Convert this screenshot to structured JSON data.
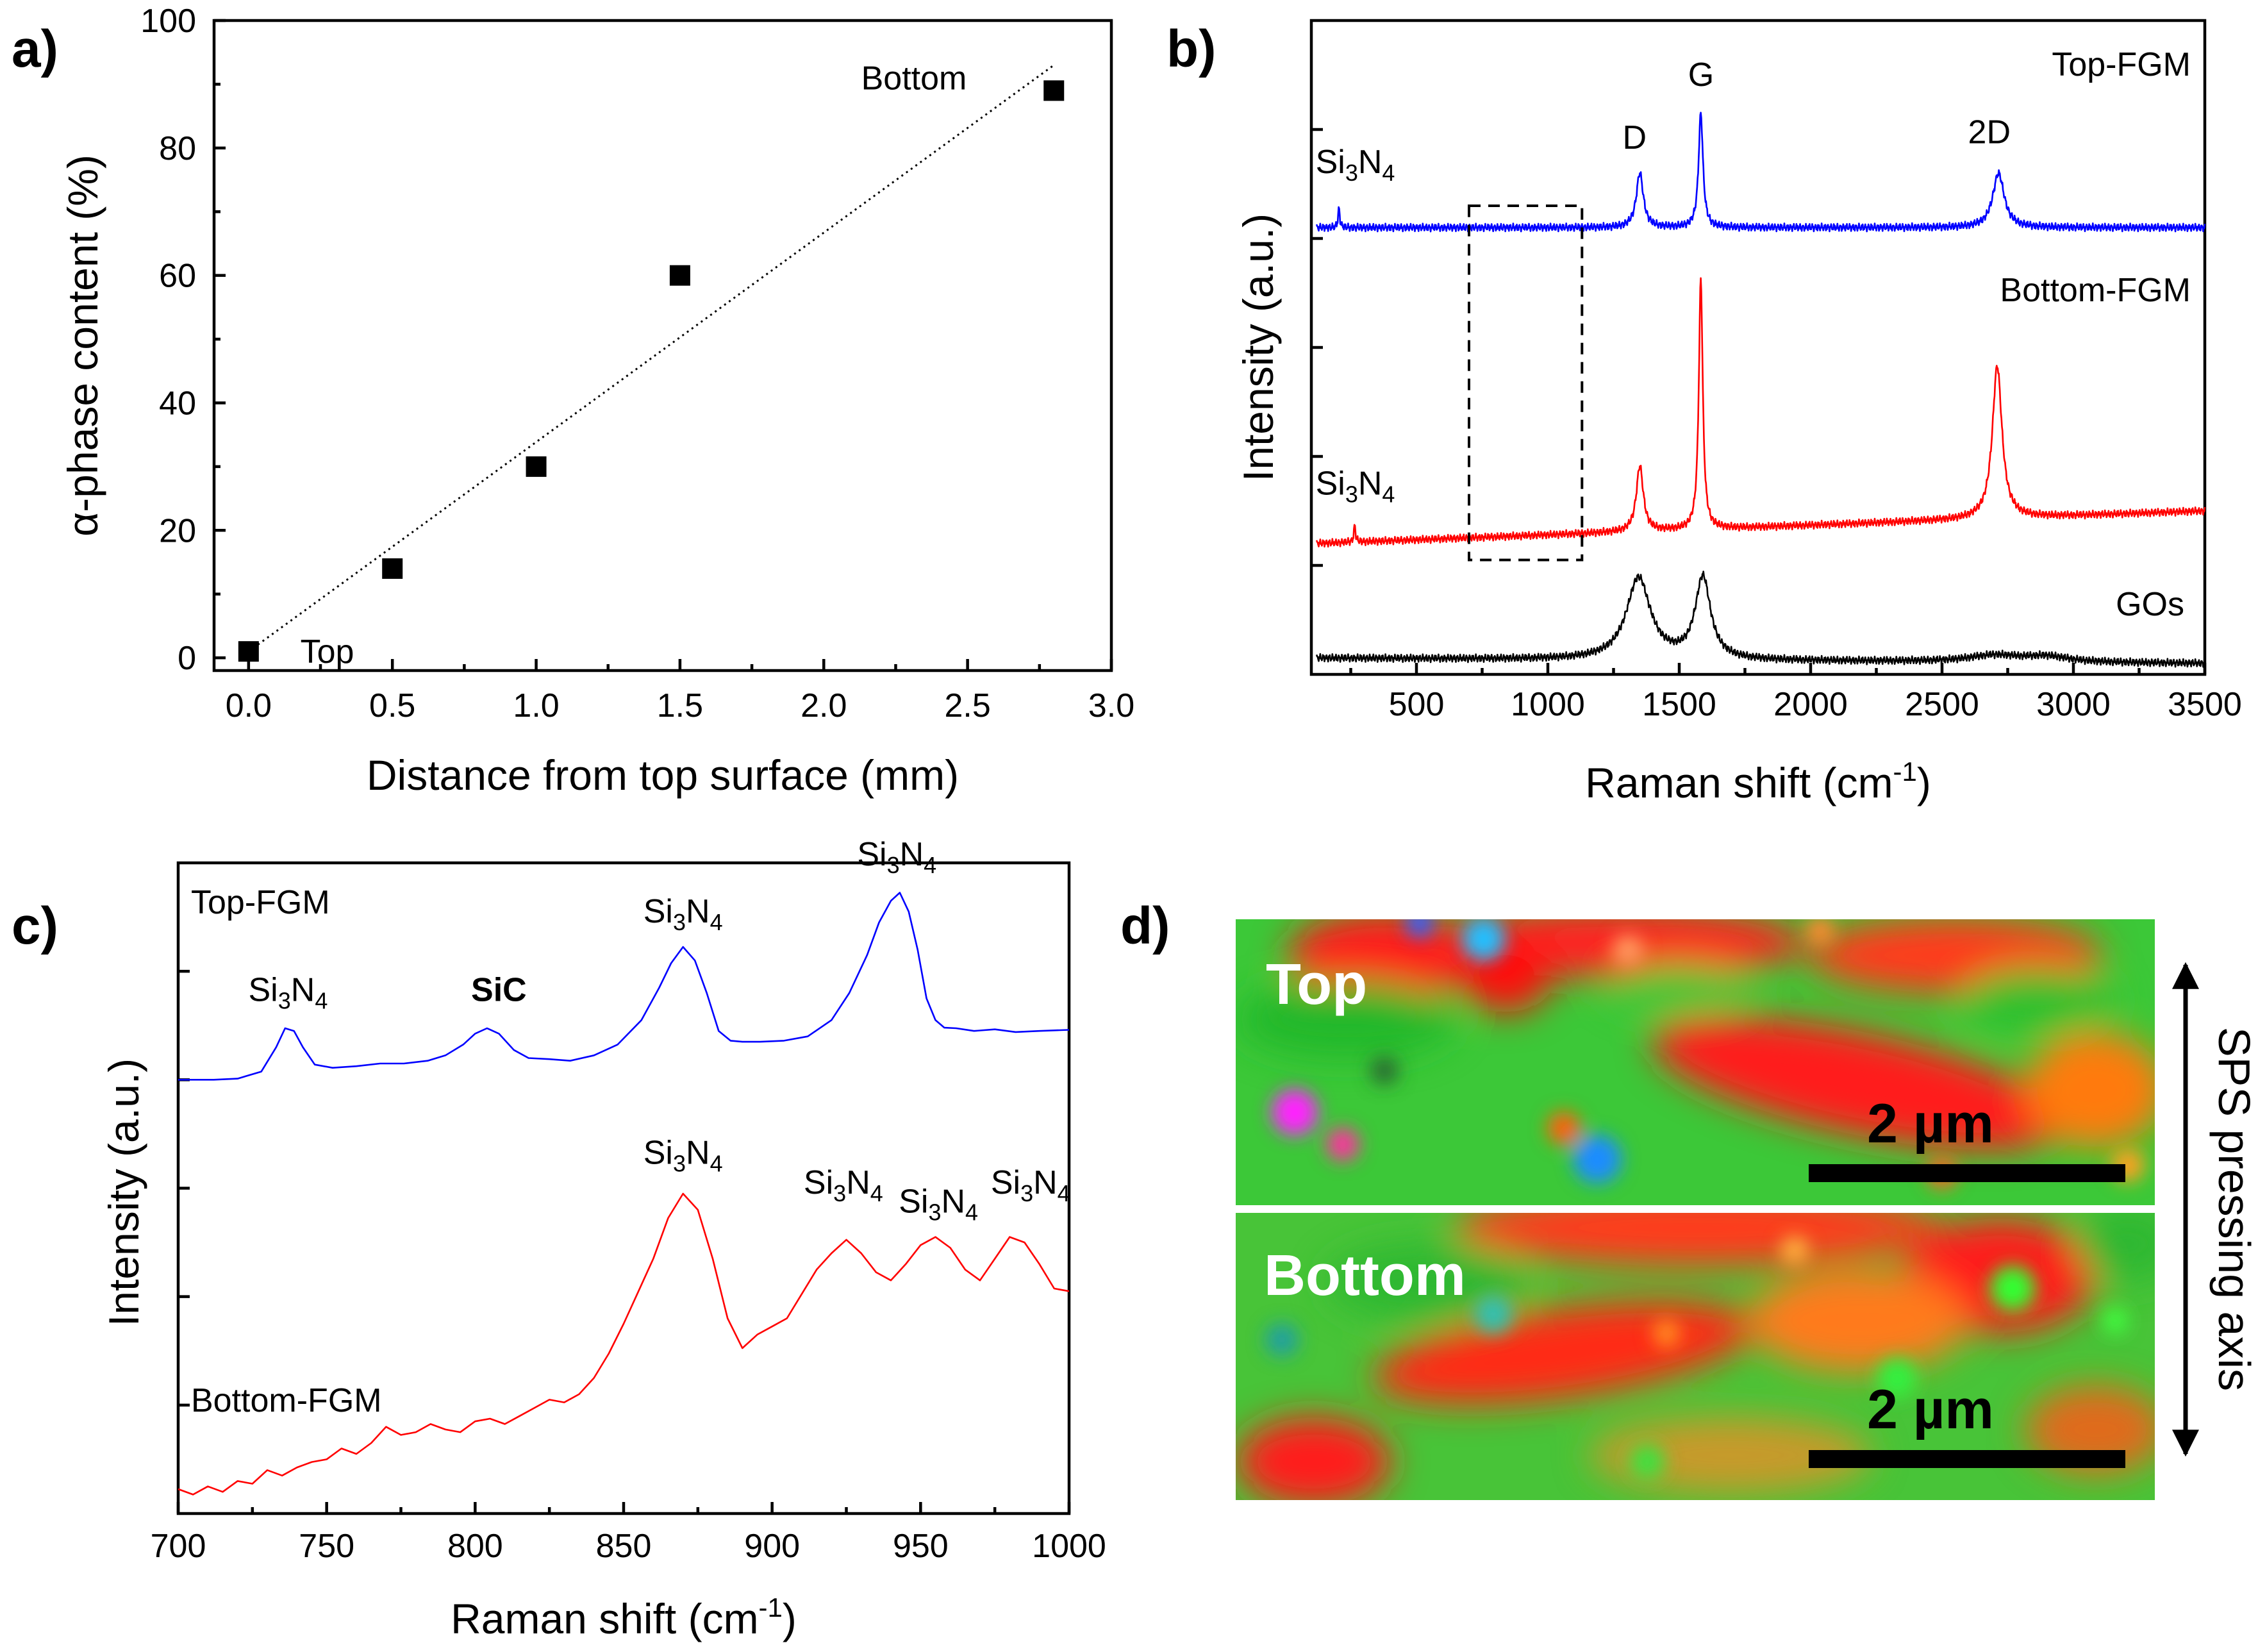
{
  "colors": {
    "blue": "#0000ff",
    "red": "#ff0000",
    "black": "#000000"
  },
  "panels": {
    "a": "a)",
    "b": "b)",
    "c": "c)",
    "d": "d)"
  },
  "chart_data": [
    {
      "id": "a",
      "type": "scatter",
      "xlabel": "Distance from top surface (mm)",
      "ylabel": "α-phase content (%)",
      "xlim": [
        -0.12,
        3.0
      ],
      "ylim": [
        -2,
        100
      ],
      "xticks": [
        0.0,
        0.5,
        1.0,
        1.5,
        2.0,
        2.5,
        3.0
      ],
      "xtick_labels": [
        "0.0",
        "0.5",
        "1.0",
        "1.5",
        "2.0",
        "2.5",
        "3.0"
      ],
      "yticks": [
        0,
        20,
        40,
        60,
        80,
        100
      ],
      "ytick_labels": [
        "0",
        "20",
        "40",
        "60",
        "80",
        "100"
      ],
      "points": [
        {
          "x": 0.0,
          "y": 1
        },
        {
          "x": 0.5,
          "y": 14
        },
        {
          "x": 1.0,
          "y": 30
        },
        {
          "x": 1.5,
          "y": 60
        },
        {
          "x": 2.8,
          "y": 89
        }
      ],
      "fit_line": [
        {
          "x": 0.0,
          "y": 1
        },
        {
          "x": 2.8,
          "y": 93
        }
      ],
      "annotations": [
        {
          "text": "Top",
          "x": 0.18,
          "y": 1
        },
        {
          "text": "Bottom",
          "x": 2.13,
          "y": 91
        }
      ]
    },
    {
      "id": "b",
      "type": "line",
      "xlabel": "Raman shift (cm",
      "xlabel_sup": "-1",
      "xlabel_close": ")",
      "ylabel": "Intensity (a.u.)",
      "xlim": [
        100,
        3500
      ],
      "ylim": [
        0,
        12
      ],
      "xticks": [
        500,
        1000,
        1500,
        2000,
        2500,
        3000,
        3500
      ],
      "xtick_labels": [
        "500",
        "1000",
        "1500",
        "2000",
        "2500",
        "3000",
        "3500"
      ],
      "yticks": [
        2,
        4,
        6,
        8,
        10
      ],
      "series": [
        {
          "name": "GOs",
          "color": "#000000",
          "baseline": 0.3,
          "slope": -0.1,
          "peaks": [
            {
              "x": 1345,
              "h": 1.5,
              "w": 55
            },
            {
              "x": 1590,
              "h": 1.5,
              "w": 35
            },
            {
              "x": 2700,
              "h": 0.12,
              "w": 120
            },
            {
              "x": 2900,
              "h": 0.1,
              "w": 100
            }
          ]
        },
        {
          "name": "Bottom-FGM",
          "color": "#ff0000",
          "baseline": 2.4,
          "slope": 0.6,
          "peaks": [
            {
              "x": 265,
              "h": 0.3,
              "w": 4
            },
            {
              "x": 1350,
              "h": 1.2,
              "w": 16
            },
            {
              "x": 1582,
              "h": 4.6,
              "w": 9
            },
            {
              "x": 2710,
              "h": 2.8,
              "w": 22
            }
          ]
        },
        {
          "name": "Top-FGM",
          "color": "#0000ff",
          "baseline": 8.2,
          "slope": 0.0,
          "peaks": [
            {
              "x": 205,
              "h": 0.35,
              "w": 4
            },
            {
              "x": 1350,
              "h": 1.0,
              "w": 16
            },
            {
              "x": 1582,
              "h": 2.1,
              "w": 10
            },
            {
              "x": 2715,
              "h": 1.0,
              "w": 26
            }
          ]
        }
      ],
      "legend": [
        {
          "text": "Top-FGM",
          "color": "#0000ff"
        },
        {
          "text": "Bottom-FGM",
          "color": "#ff0000"
        },
        {
          "text": "GOs",
          "color": "#000000"
        }
      ],
      "peak_labels": [
        {
          "text": "D",
          "x": 1330,
          "y": 9.65
        },
        {
          "text": "G",
          "x": 1583,
          "y": 10.8
        },
        {
          "text": "2D",
          "x": 2680,
          "y": 9.75
        }
      ],
      "si3n4_labels": [
        {
          "x": 150,
          "y": 9.2
        },
        {
          "x": 150,
          "y": 3.3
        }
      ],
      "box": {
        "x0": 700,
        "x1": 1130,
        "y0": 2.1,
        "y1": 8.6
      }
    },
    {
      "id": "c",
      "type": "line",
      "xlabel": "Raman shift (cm",
      "xlabel_sup": "-1",
      "xlabel_close": ")",
      "ylabel": "Intensity (a.u.)",
      "xlim": [
        700,
        1000
      ],
      "ylim": [
        0,
        12
      ],
      "xticks": [
        700,
        750,
        800,
        850,
        900,
        950,
        1000
      ],
      "xtick_labels": [
        "700",
        "750",
        "800",
        "850",
        "900",
        "950",
        "1000"
      ],
      "yticks": [
        2,
        4,
        6,
        8,
        10
      ],
      "series": [
        {
          "name": "Top-FGM",
          "color": "#0000ff",
          "x": [
            700,
            712,
            720,
            728,
            733,
            736,
            739,
            742,
            746,
            752,
            760,
            768,
            776,
            784,
            790,
            796,
            800,
            804,
            808,
            813,
            818,
            825,
            832,
            840,
            848,
            856,
            862,
            866,
            870,
            874,
            878,
            882,
            886,
            890,
            896,
            904,
            912,
            920,
            926,
            932,
            936,
            940,
            943,
            946,
            949,
            952,
            955,
            958,
            962,
            968,
            975,
            982,
            990,
            1000
          ],
          "y": [
            8.0,
            8.0,
            8.02,
            8.15,
            8.6,
            8.95,
            8.9,
            8.6,
            8.28,
            8.22,
            8.25,
            8.3,
            8.3,
            8.35,
            8.45,
            8.65,
            8.85,
            8.95,
            8.85,
            8.55,
            8.4,
            8.38,
            8.35,
            8.45,
            8.65,
            9.1,
            9.7,
            10.15,
            10.45,
            10.2,
            9.6,
            8.9,
            8.72,
            8.7,
            8.7,
            8.72,
            8.8,
            9.1,
            9.6,
            10.3,
            10.9,
            11.3,
            11.45,
            11.1,
            10.4,
            9.5,
            9.1,
            8.96,
            8.95,
            8.9,
            8.93,
            8.88,
            8.9,
            8.92
          ]
        },
        {
          "name": "Bottom-FGM",
          "color": "#ff0000",
          "x": [
            700,
            705,
            710,
            715,
            720,
            725,
            730,
            735,
            740,
            745,
            750,
            755,
            760,
            765,
            770,
            775,
            780,
            785,
            790,
            795,
            800,
            805,
            810,
            815,
            820,
            825,
            830,
            835,
            840,
            845,
            850,
            855,
            860,
            865,
            870,
            875,
            880,
            885,
            890,
            895,
            900,
            905,
            910,
            915,
            920,
            925,
            930,
            935,
            940,
            945,
            950,
            955,
            960,
            965,
            970,
            975,
            980,
            985,
            990,
            995,
            1000
          ],
          "y": [
            0.45,
            0.35,
            0.5,
            0.4,
            0.6,
            0.55,
            0.8,
            0.7,
            0.85,
            0.95,
            1.0,
            1.2,
            1.1,
            1.3,
            1.6,
            1.45,
            1.5,
            1.65,
            1.55,
            1.5,
            1.7,
            1.75,
            1.65,
            1.8,
            1.95,
            2.1,
            2.05,
            2.2,
            2.5,
            2.95,
            3.5,
            4.1,
            4.7,
            5.45,
            5.9,
            5.6,
            4.7,
            3.6,
            3.05,
            3.3,
            3.45,
            3.6,
            4.05,
            4.5,
            4.8,
            5.05,
            4.8,
            4.45,
            4.3,
            4.6,
            4.95,
            5.1,
            4.9,
            4.5,
            4.3,
            4.7,
            5.1,
            5.0,
            4.6,
            4.15,
            4.1
          ]
        }
      ],
      "legend": [
        {
          "text": "Top-FGM",
          "color": "#0000ff"
        },
        {
          "text": "Bottom-FGM",
          "color": "#ff0000"
        }
      ],
      "sic_label": {
        "text": "SiC",
        "color": "#ff0000",
        "x": 808,
        "y": 9.45
      },
      "si3n4_labels": [
        {
          "x": 737,
          "y": 9.45
        },
        {
          "x": 870,
          "y": 10.9
        },
        {
          "x": 942,
          "y": 11.95
        },
        {
          "x": 870,
          "y": 6.45
        },
        {
          "x": 924,
          "y": 5.9
        },
        {
          "x": 956,
          "y": 5.55
        },
        {
          "x": 987,
          "y": 5.9
        }
      ]
    }
  ],
  "si3n4": {
    "a": "Si",
    "b": "3",
    "c": "N",
    "d": "4"
  },
  "panel_d": {
    "top_label": "Top",
    "bottom_label": "Bottom",
    "scale_bar": "2 µm",
    "axis_label": "SPS pressing axis"
  }
}
